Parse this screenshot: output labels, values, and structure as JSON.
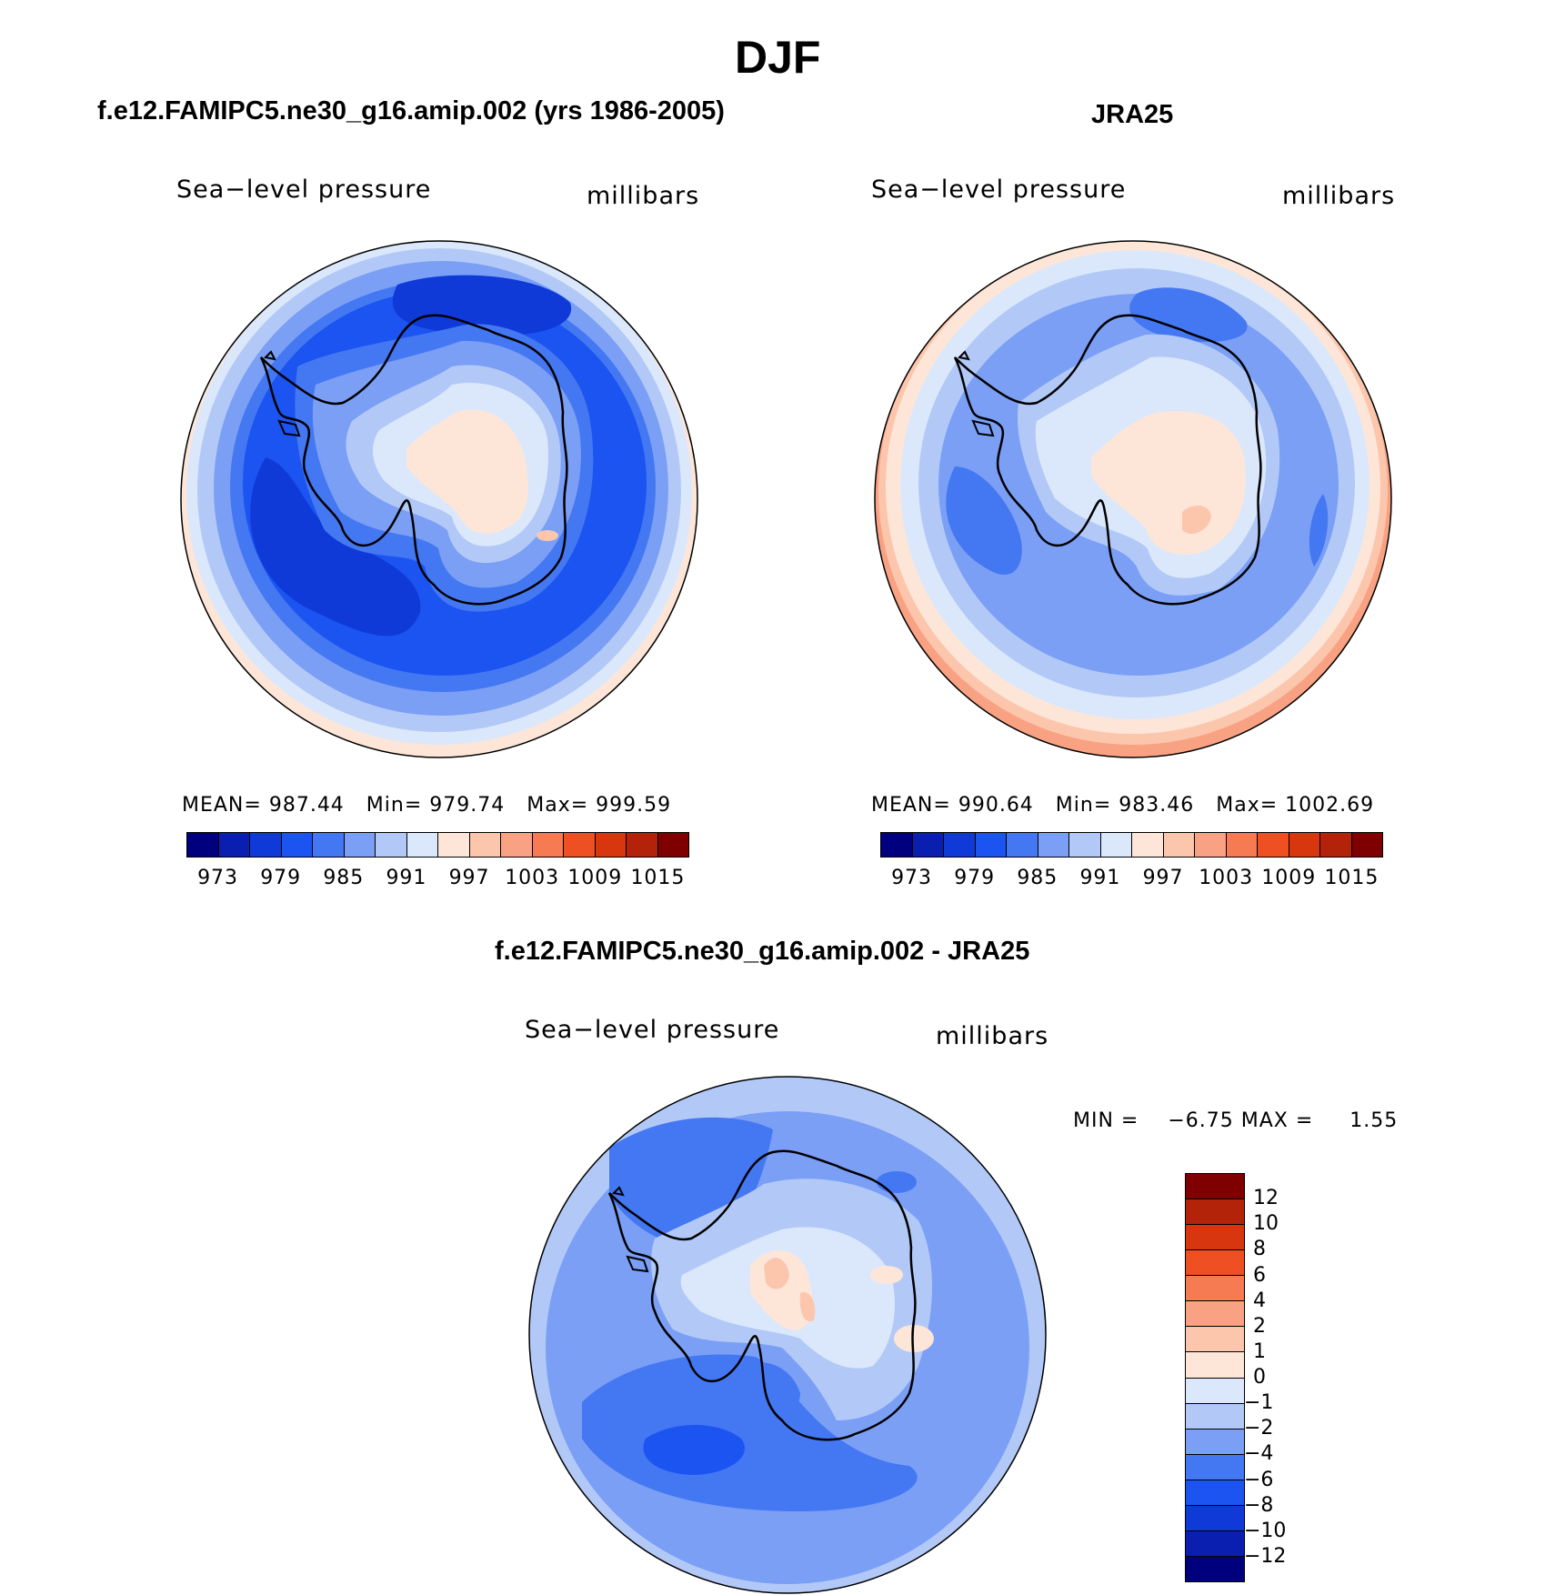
{
  "title": "DJF",
  "panels": {
    "model": {
      "title": "f.e12.FAMIPC5.ne30_g16.amip.002 (yrs 1986-2005)",
      "variable": "Sea−level pressure",
      "units": "millibars",
      "stats": {
        "mean_label": "MEAN=",
        "mean": "987.44",
        "min_label": "Min=",
        "min": "979.74",
        "max_label": "Max=",
        "max": "999.59"
      }
    },
    "obs": {
      "title": "JRA25",
      "variable": "Sea−level pressure",
      "units": "millibars",
      "stats": {
        "mean_label": "MEAN=",
        "mean": "990.64",
        "min_label": "Min=",
        "min": "983.46",
        "max_label": "Max=",
        "max": "1002.69"
      }
    },
    "diff": {
      "title": "f.e12.FAMIPC5.ne30_g16.amip.002 - JRA25",
      "variable": "Sea−level pressure",
      "units": "millibars",
      "stats": {
        "min_label": "MIN =",
        "min": "−6.75",
        "max_label": "MAX =",
        "max": "1.55"
      }
    }
  },
  "colorbars": {
    "abs": {
      "colors": [
        "#00007f",
        "#0a1fb0",
        "#0f3ad8",
        "#1b54f0",
        "#4477f2",
        "#7a9ff5",
        "#b2c9f8",
        "#dbe8fb",
        "#fde6d8",
        "#fcc6ad",
        "#f9a283",
        "#f67a52",
        "#ee5024",
        "#d8360f",
        "#b3230a",
        "#7f0000"
      ],
      "labels": [
        "973",
        "979",
        "985",
        "991",
        "997",
        "1003",
        "1009",
        "1015"
      ]
    },
    "diff": {
      "colors_top_to_bottom": [
        "#7f0000",
        "#b3230a",
        "#d8360f",
        "#ee5024",
        "#f67a52",
        "#f9a283",
        "#fcc6ad",
        "#fde6d8",
        "#dbe8fb",
        "#b2c9f8",
        "#7a9ff5",
        "#4477f2",
        "#1b54f0",
        "#0f3ad8",
        "#0a1fb0",
        "#00007f"
      ],
      "labels": [
        "12",
        "10",
        "8",
        "6",
        "4",
        "2",
        "1",
        "0",
        "−1",
        "−2",
        "−4",
        "−6",
        "−8",
        "−10",
        "−12"
      ]
    }
  },
  "map_colors": {
    "c_lt4": "#4477f2",
    "c_lt5": "#7a9ff5",
    "c_lt6": "#b2c9f8",
    "c_lt7": "#dbe8fb",
    "c_w1": "#fde6d8",
    "c_w2": "#fcc6ad",
    "c_w3": "#f9a283",
    "c_dk": "#1b54f0",
    "c_dk2": "#0f3ad8"
  }
}
